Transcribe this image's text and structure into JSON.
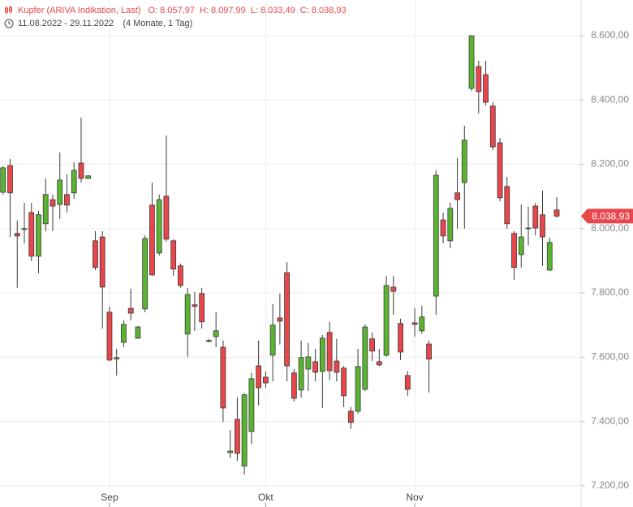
{
  "chart_data": {
    "type": "candlestick",
    "title": "Kupfer (ARIVA Indikation, Last)",
    "ohlc_summary": [
      {
        "label": "O:",
        "value": "8.057,97"
      },
      {
        "label": "H:",
        "value": "8.097,99"
      },
      {
        "label": "L:",
        "value": "8.033,49"
      },
      {
        "label": "C:",
        "value": "8.038,93"
      }
    ],
    "date_range": "11.08.2022 - 29.11.2022",
    "period": "(4 Monate, 1 Tag)",
    "last_price_label": "8.038,93",
    "categories": [
      null,
      null,
      null,
      null,
      null,
      null,
      null,
      null,
      null,
      null,
      null,
      null,
      null,
      null,
      null,
      "Sep",
      null,
      null,
      null,
      null,
      null,
      null,
      null,
      null,
      null,
      null,
      null,
      null,
      null,
      null,
      null,
      null,
      null,
      null,
      null,
      null,
      null,
      "Okt",
      null,
      null,
      null,
      null,
      null,
      null,
      null,
      null,
      null,
      null,
      null,
      null,
      null,
      null,
      null,
      null,
      null,
      null,
      null,
      null,
      "Nov",
      null,
      null,
      null,
      null,
      null,
      null,
      null,
      null,
      null,
      null,
      null,
      null,
      null,
      null,
      null,
      null,
      null,
      null,
      null,
      null
    ],
    "open": [
      8113,
      8196,
      7985,
      7997,
      8050,
      7914,
      8015,
      8090,
      8075,
      8106,
      8111,
      8204,
      8156,
      7962,
      7974,
      7740,
      7594,
      7646,
      7752,
      7659,
      7750,
      8073,
      7924,
      8101,
      7962,
      7884,
      7672,
      7763,
      7798,
      7649,
      7664,
      7631,
      7303,
      7407,
      7261,
      7369,
      7573,
      7538,
      7606,
      7722,
      7863,
      7551,
      7498,
      7563,
      7586,
      7556,
      7677,
      7588,
      7566,
      7432,
      7432,
      7500,
      7657,
      7586,
      7606,
      7818,
      7705,
      7543,
      7707,
      7682,
      7641,
      7790,
      8027,
      7962,
      8111,
      8143,
      8436,
      8504,
      8479,
      8381,
      8267,
      8131,
      7985,
      7919,
      8000,
      8070,
      8043,
      7871,
      8057.97
    ],
    "high": [
      8194,
      8217,
      8025,
      8080,
      8080,
      8055,
      8156,
      8106,
      8237,
      8169,
      8206,
      8345,
      8166,
      7992,
      7992,
      7758,
      7626,
      7715,
      7813,
      7697,
      7979,
      8143,
      8106,
      8290,
      7967,
      7891,
      7816,
      7803,
      7816,
      7657,
      7740,
      7652,
      7374,
      7475,
      7488,
      7551,
      7652,
      7556,
      7765,
      7798,
      7896,
      7563,
      7652,
      7644,
      7626,
      7669,
      7710,
      7657,
      7573,
      7445,
      7626,
      7702,
      7677,
      7626,
      7853,
      7853,
      7720,
      7556,
      7752,
      7760,
      7652,
      8181,
      8050,
      8080,
      8219,
      8320,
      8600,
      8522,
      8522,
      8393,
      8282,
      8161,
      7992,
      8075,
      8068,
      8080,
      8118,
      7972,
      8097.99
    ],
    "low": [
      8106,
      7974,
      7816,
      7954,
      7899,
      7861,
      7992,
      7992,
      8030,
      8050,
      8093,
      8143,
      8154,
      7871,
      7689,
      7588,
      7543,
      7631,
      7715,
      7657,
      7740,
      7853,
      7916,
      7959,
      7853,
      7816,
      7601,
      7682,
      7689,
      7646,
      7631,
      7399,
      7286,
      7278,
      7235,
      7329,
      7450,
      7505,
      7525,
      7639,
      7525,
      7462,
      7475,
      7495,
      7525,
      7442,
      7530,
      7525,
      7445,
      7377,
      7424,
      7495,
      7588,
      7571,
      7601,
      7732,
      7591,
      7480,
      7664,
      7672,
      7490,
      7732,
      7954,
      7939,
      8000,
      8000,
      8428,
      8358,
      8383,
      8244,
      8085,
      8000,
      7841,
      7879,
      7947,
      7979,
      7884,
      7868,
      8033.49
    ],
    "close": [
      8189,
      8111,
      7977,
      8000,
      7914,
      8043,
      8106,
      8070,
      8151,
      8073,
      8181,
      8156,
      8164,
      7879,
      7818,
      7591,
      7599,
      7702,
      7737,
      7694,
      7969,
      7856,
      8090,
      7967,
      7874,
      7823,
      7795,
      7758,
      7710,
      7652,
      7682,
      7442,
      7308,
      7301,
      7483,
      7533,
      7505,
      7520,
      7700,
      7712,
      7573,
      7472,
      7599,
      7601,
      7553,
      7659,
      7558,
      7553,
      7480,
      7397,
      7571,
      7694,
      7619,
      7576,
      7823,
      7805,
      7616,
      7500,
      7702,
      7725,
      7594,
      8166,
      7977,
      8063,
      8090,
      8275,
      8600,
      8426,
      8393,
      8254,
      8096,
      8015,
      7879,
      7974,
      8002,
      8002,
      7974,
      7957,
      8038.93
    ],
    "up_color": "#5bb431",
    "down_color": "#e8464a",
    "edge_color": "#3a3a3a",
    "ylim": [
      7134,
      8711
    ],
    "yticks": [
      {
        "value": 7200,
        "label": "7.200,00"
      },
      {
        "value": 7400,
        "label": "7.400,00"
      },
      {
        "value": 7600,
        "label": "7.600,00"
      },
      {
        "value": 7800,
        "label": "7.800,00"
      },
      {
        "value": 8000,
        "label": "8.000,00"
      },
      {
        "value": 8200,
        "label": "8.200,00"
      },
      {
        "value": 8400,
        "label": "8.400,00"
      },
      {
        "value": 8600,
        "label": "8.600,00"
      }
    ],
    "grid": true
  }
}
